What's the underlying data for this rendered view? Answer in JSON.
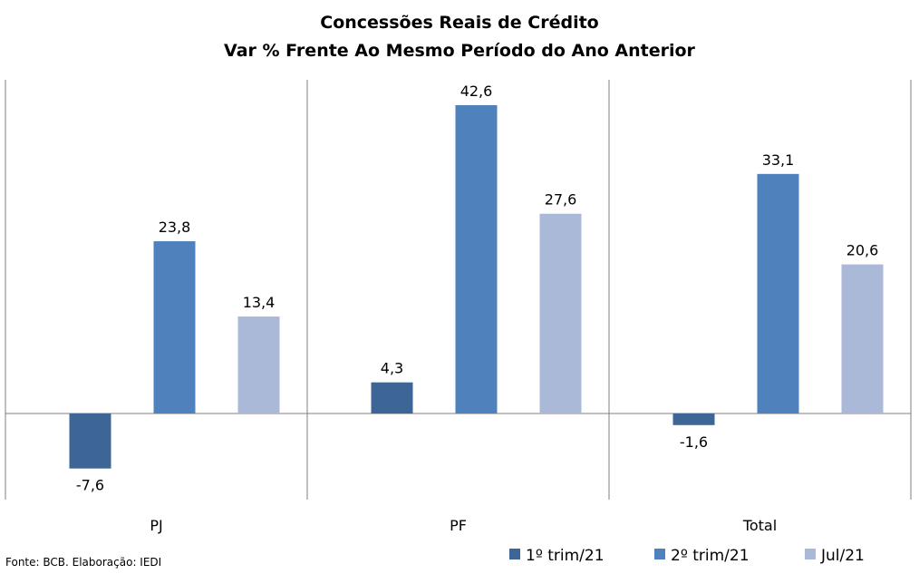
{
  "chart_data": {
    "type": "bar",
    "title": "Concessões Reais de Crédito",
    "subtitle": "Var % Frente Ao Mesmo Período do Ano Anterior",
    "categories": [
      "PJ",
      "PF",
      "Total"
    ],
    "series": [
      {
        "name": "1º trim/21",
        "values": [
          -7.6,
          4.3,
          -1.6
        ],
        "labels": [
          "-7,6",
          "4,3",
          "-1,6"
        ],
        "color": "#3d6596"
      },
      {
        "name": "2º trim/21",
        "values": [
          23.8,
          42.6,
          33.1
        ],
        "labels": [
          "23,8",
          "42,6",
          "33,1"
        ],
        "color": "#4f81bd"
      },
      {
        "name": "Jul/21",
        "values": [
          13.4,
          27.6,
          20.6
        ],
        "labels": [
          "13,4",
          "27,6",
          "20,6"
        ],
        "color": "#aab9d8"
      }
    ],
    "ylim": [
      -11,
      43
    ],
    "grid": false,
    "legend_position": "bottom-right",
    "source": "Fonte:  BCB. Elaboração: IEDI"
  }
}
